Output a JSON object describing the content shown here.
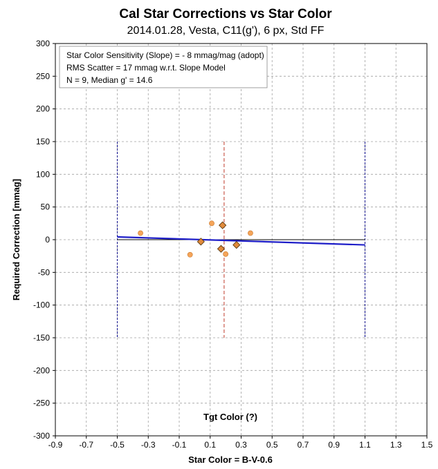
{
  "chart_data": {
    "type": "scatter",
    "title": "Cal Star Corrections vs Star Color",
    "subtitle": "2014.01.28, Vesta,  C11(g'), 6 px,  Std FF",
    "xlabel": "Star Color = B-V-0.6",
    "ylabel": "Required Correction [mmag]",
    "xlim": [
      -0.9,
      1.5
    ],
    "ylim": [
      -300,
      300
    ],
    "x_ticks": [
      "-0.9",
      "-0.7",
      "-0.5",
      "-0.3",
      "-0.1",
      "0.1",
      "0.3",
      "0.5",
      "0.7",
      "0.9",
      "1.1",
      "1.3",
      "1.5"
    ],
    "y_ticks": [
      "300",
      "250",
      "200",
      "150",
      "100",
      "50",
      "0",
      "-50",
      "-100",
      "-150",
      "-200",
      "-250",
      "-300"
    ],
    "grid": true,
    "inner_label": "Tgt Color (?)",
    "annotation_lines": [
      "Star Color Sensitivity (Slope)  =  - 8 mmag/mag (adopt)",
      "RMS Scatter = 17 mmag  w.r.t. Slope Model",
      "N = 9,  Median g' = 14.6"
    ],
    "series": [
      {
        "marker": "circle",
        "color": "#f5a55a",
        "x": [
          -0.35,
          -0.03,
          0.11,
          0.2,
          0.36
        ],
        "y": [
          10,
          -23,
          25,
          -22,
          10
        ]
      },
      {
        "marker": "diamond",
        "color": "#e08a3c",
        "x": [
          0.04,
          0.17,
          0.18,
          0.27
        ],
        "y": [
          -3,
          -14,
          22,
          -8
        ]
      }
    ],
    "slope_fit": {
      "x": [
        -0.5,
        1.1
      ],
      "y": [
        4.2,
        -8.0
      ],
      "color": "#1e1ec8"
    },
    "zero_line": {
      "x": [
        -0.5,
        1.1
      ],
      "y": [
        0,
        0
      ],
      "color": "#000000"
    },
    "range_lines": {
      "x": [
        -0.5,
        1.1
      ],
      "y": [
        -150,
        150
      ],
      "color": "#00008b"
    },
    "target_line": {
      "x": 0.19,
      "y": [
        -150,
        150
      ],
      "color": "#c0392b"
    }
  }
}
